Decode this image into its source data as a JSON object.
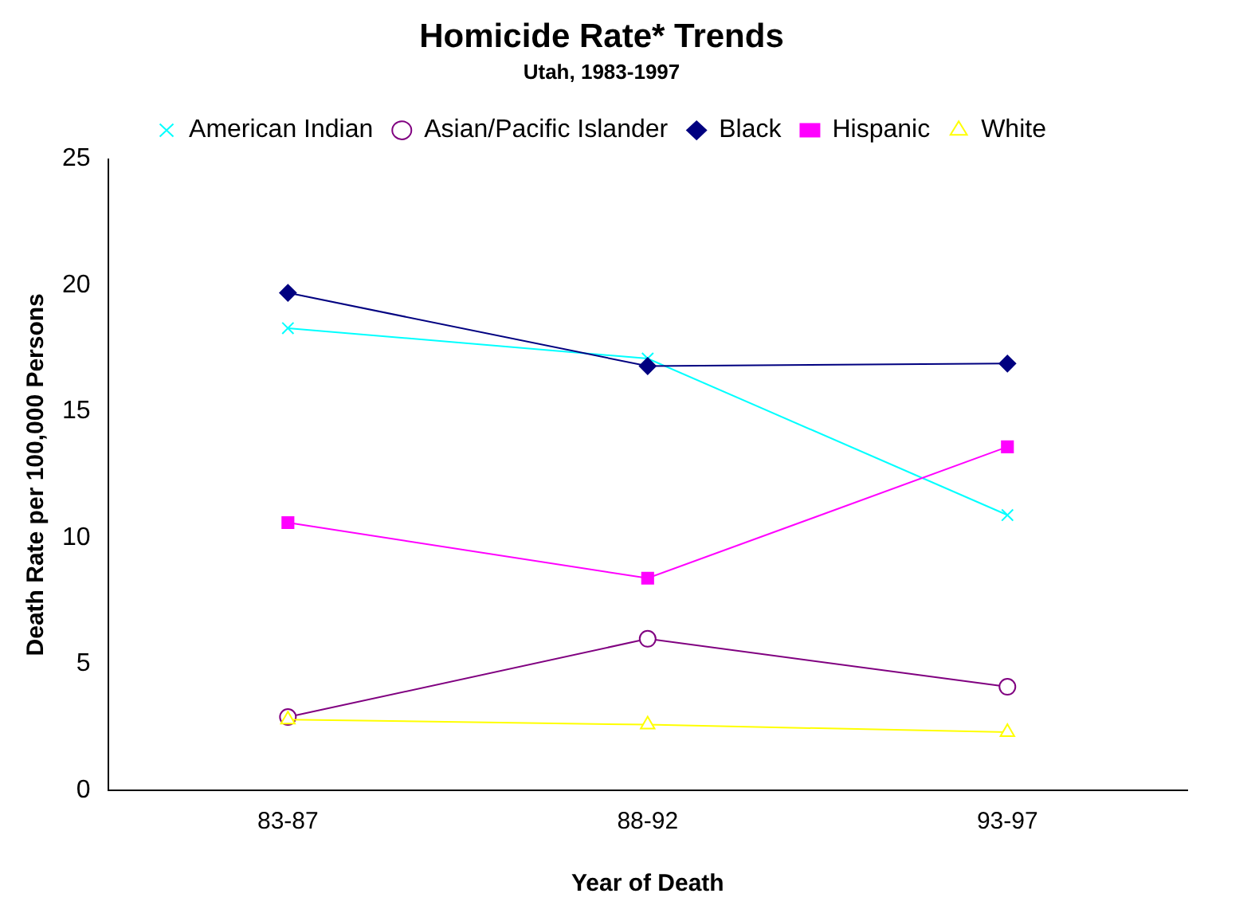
{
  "chart_data": {
    "type": "line",
    "title": "Homicide Rate* Trends",
    "subtitle": "Utah, 1983-1997",
    "xlabel": "Year of Death",
    "ylabel": "Death Rate per 100,000 Persons",
    "categories": [
      "83-87",
      "88-92",
      "93-97"
    ],
    "series": [
      {
        "name": "American Indian",
        "color": "#00ffff",
        "marker": "cross",
        "values": [
          18.3,
          17.1,
          10.9
        ]
      },
      {
        "name": "Asian/Pacific Islander",
        "color": "#800080",
        "marker": "circle",
        "values": [
          2.9,
          6.0,
          4.1
        ]
      },
      {
        "name": "Black",
        "color": "#000080",
        "marker": "diamond",
        "values": [
          19.7,
          16.8,
          16.9
        ]
      },
      {
        "name": "Hispanic",
        "color": "#ff00ff",
        "marker": "square",
        "values": [
          10.6,
          8.4,
          13.6
        ]
      },
      {
        "name": "White",
        "color": "#ffff00",
        "marker": "triangle",
        "values": [
          2.8,
          2.6,
          2.3
        ]
      }
    ],
    "ylim": [
      0,
      25
    ],
    "yticks": [
      0,
      5,
      10,
      15,
      20,
      25
    ],
    "grid": false,
    "legend": "top",
    "line_style": "solid"
  }
}
